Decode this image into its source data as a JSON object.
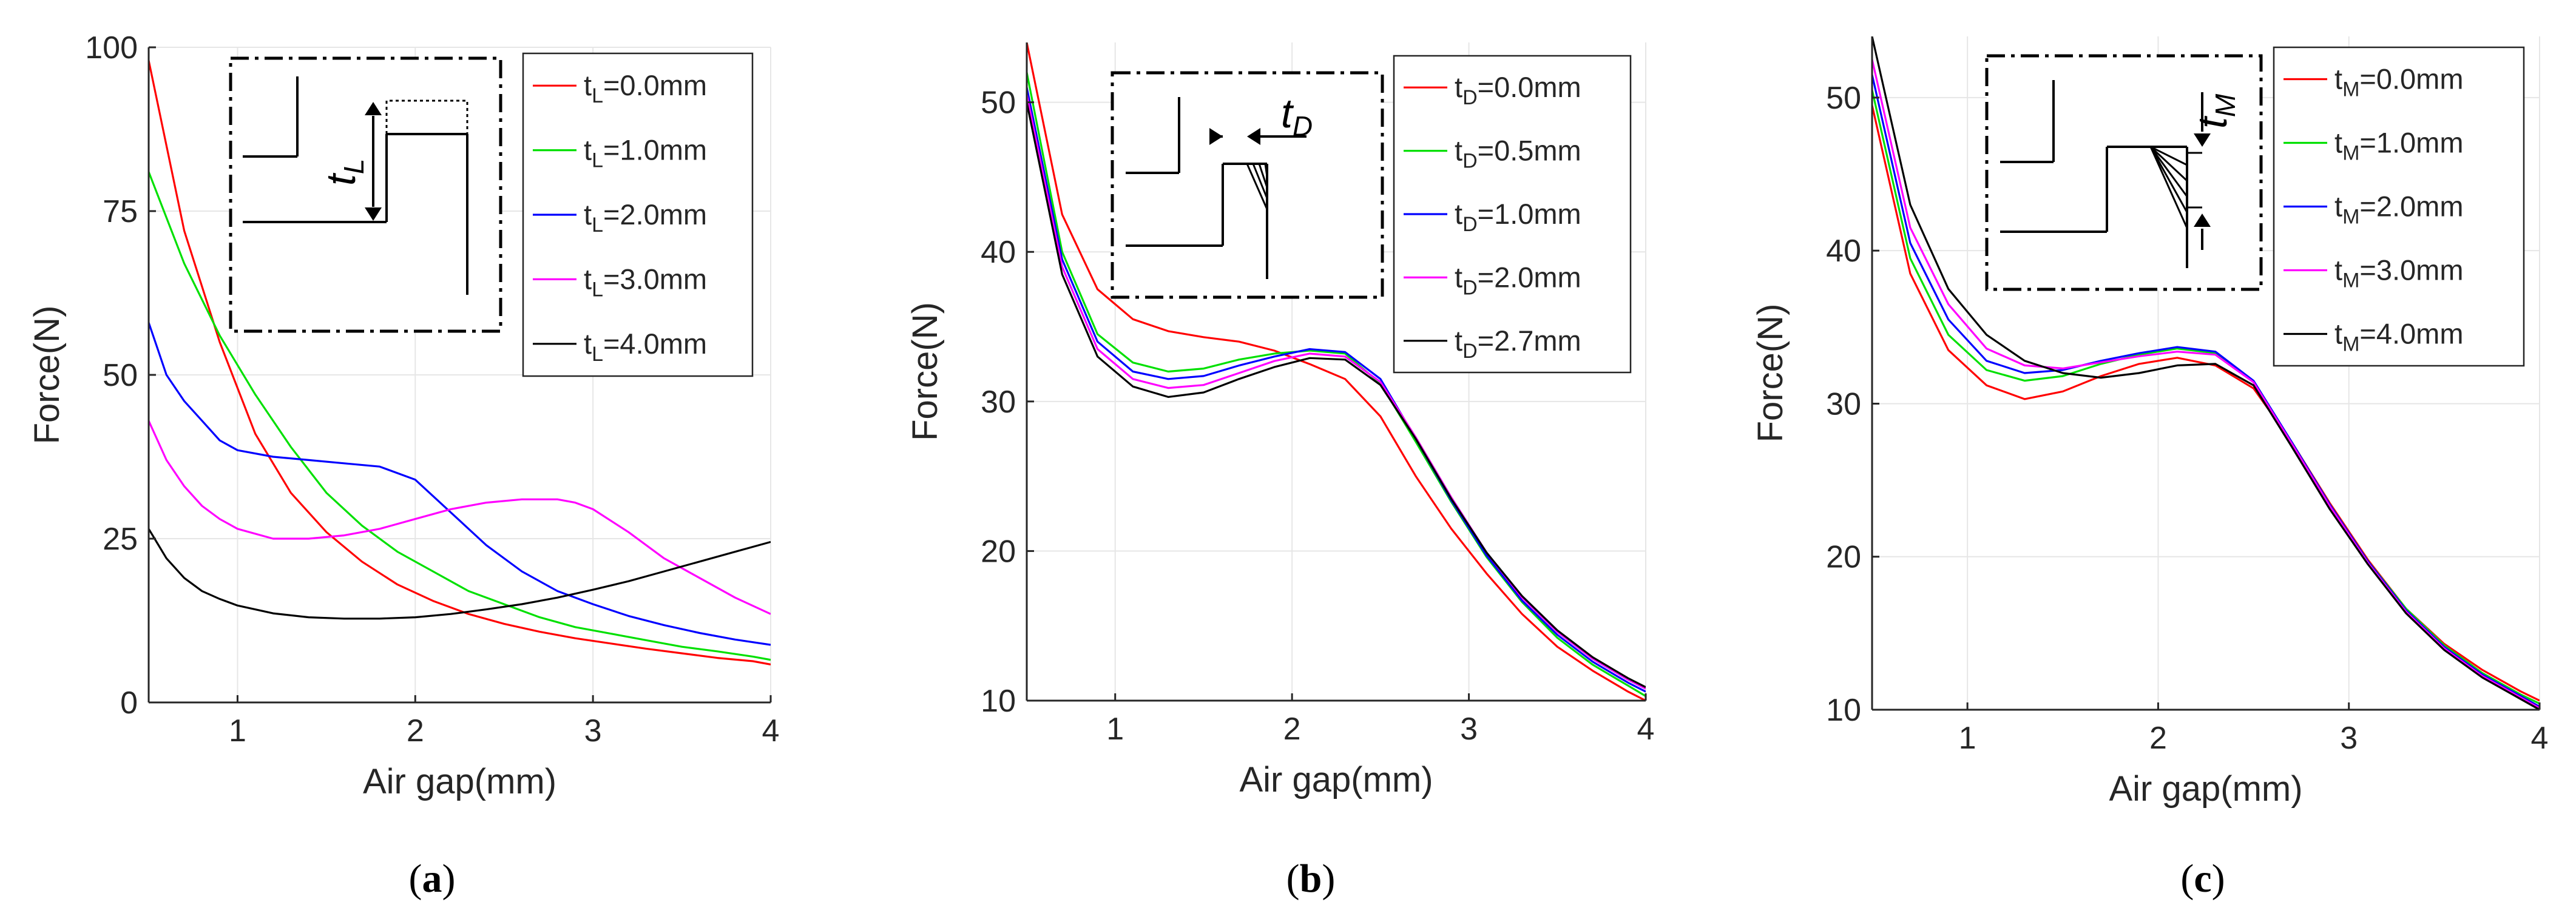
{
  "chart_data": [
    {
      "type": "line",
      "caption": {
        "open": "(",
        "letter": "a",
        "close": ")"
      },
      "xlabel": "Air gap(mm)",
      "ylabel": "Force(N)",
      "xlim": [
        0.5,
        4
      ],
      "ylim": [
        0,
        100
      ],
      "xticks": [
        1,
        2,
        3,
        4
      ],
      "yticks": [
        0,
        25,
        50,
        75,
        100
      ],
      "grid": true,
      "legend_position": "top-right",
      "inset": {
        "kind": "step-height",
        "symbol": "t",
        "subscript": "L"
      },
      "series": [
        {
          "name": "t_L=0.0mm",
          "sym": "t",
          "sub": "L",
          "val": "=0.0mm",
          "color": "#ff0000",
          "x": [
            0.5,
            0.7,
            0.9,
            1.1,
            1.3,
            1.5,
            1.7,
            1.9,
            2.1,
            2.3,
            2.5,
            2.7,
            2.9,
            3.1,
            3.3,
            3.5,
            3.7,
            3.9,
            4.0
          ],
          "y": [
            98,
            72,
            55,
            41,
            32,
            26,
            21.5,
            18,
            15.5,
            13.5,
            12,
            10.8,
            9.8,
            9,
            8.2,
            7.5,
            6.8,
            6.3,
            5.8
          ]
        },
        {
          "name": "t_L=1.0mm",
          "sym": "t",
          "sub": "L",
          "val": "=1.0mm",
          "color": "#00e000",
          "x": [
            0.5,
            0.7,
            0.9,
            1.1,
            1.3,
            1.5,
            1.7,
            1.9,
            2.1,
            2.3,
            2.5,
            2.7,
            2.9,
            3.1,
            3.3,
            3.5,
            3.7,
            3.9,
            4.0
          ],
          "y": [
            81,
            67,
            56,
            47,
            39,
            32,
            27,
            23,
            20,
            17,
            15,
            13,
            11.5,
            10.5,
            9.5,
            8.5,
            7.8,
            7,
            6.5
          ]
        },
        {
          "name": "t_L=2.0mm",
          "sym": "t",
          "sub": "L",
          "val": "=2.0mm",
          "color": "#0000ff",
          "x": [
            0.5,
            0.6,
            0.7,
            0.8,
            0.9,
            1.0,
            1.2,
            1.4,
            1.6,
            1.8,
            2.0,
            2.2,
            2.4,
            2.6,
            2.8,
            3.0,
            3.2,
            3.4,
            3.6,
            3.8,
            4.0
          ],
          "y": [
            58,
            50,
            46,
            43,
            40,
            38.5,
            37.5,
            37,
            36.5,
            36,
            34,
            29,
            24,
            20,
            17,
            15,
            13.2,
            11.8,
            10.6,
            9.6,
            8.8
          ]
        },
        {
          "name": "t_L=3.0mm",
          "sym": "t",
          "sub": "L",
          "val": "=3.0mm",
          "color": "#ff00ff",
          "x": [
            0.5,
            0.6,
            0.7,
            0.8,
            0.9,
            1.0,
            1.2,
            1.4,
            1.6,
            1.8,
            2.0,
            2.2,
            2.4,
            2.6,
            2.7,
            2.8,
            2.9,
            3.0,
            3.2,
            3.4,
            3.6,
            3.8,
            4.0
          ],
          "y": [
            43,
            37,
            33,
            30,
            28,
            26.5,
            25,
            25,
            25.5,
            26.5,
            28,
            29.5,
            30.5,
            31,
            31,
            31,
            30.5,
            29.5,
            26,
            22,
            19,
            16,
            13.5
          ]
        },
        {
          "name": "t_L=4.0mm",
          "sym": "t",
          "sub": "L",
          "val": "=4.0mm",
          "color": "#000000",
          "x": [
            0.5,
            0.6,
            0.7,
            0.8,
            0.9,
            1.0,
            1.2,
            1.4,
            1.6,
            1.8,
            2.0,
            2.2,
            2.4,
            2.6,
            2.8,
            3.0,
            3.2,
            3.4,
            3.6,
            3.8,
            4.0
          ],
          "y": [
            26.5,
            22,
            19,
            17,
            15.8,
            14.8,
            13.6,
            13,
            12.8,
            12.8,
            13,
            13.5,
            14.2,
            15,
            16,
            17.2,
            18.5,
            20,
            21.5,
            23,
            24.5
          ]
        }
      ]
    },
    {
      "type": "line",
      "caption": {
        "open": "(",
        "letter": "b",
        "close": ")"
      },
      "xlabel": "Air gap(mm)",
      "ylabel": "Force(N)",
      "xlim": [
        0.5,
        4
      ],
      "ylim": [
        10,
        54
      ],
      "xticks": [
        1,
        2,
        3,
        4
      ],
      "yticks": [
        10,
        20,
        30,
        40,
        50
      ],
      "grid": true,
      "legend_position": "top-right",
      "inset": {
        "kind": "step-chamfer-width",
        "symbol": "t",
        "subscript": "D"
      },
      "series": [
        {
          "name": "t_D=0.0mm",
          "sym": "t",
          "sub": "D",
          "val": "=0.0mm",
          "color": "#ff0000",
          "x": [
            0.5,
            0.7,
            0.9,
            1.1,
            1.3,
            1.5,
            1.7,
            1.9,
            2.1,
            2.3,
            2.5,
            2.7,
            2.9,
            3.1,
            3.3,
            3.5,
            3.7,
            3.9,
            4.0
          ],
          "y": [
            54,
            42.5,
            37.5,
            35.5,
            34.7,
            34.3,
            34,
            33.4,
            32.5,
            31.5,
            29,
            25,
            21.5,
            18.5,
            15.8,
            13.6,
            12,
            10.6,
            10
          ]
        },
        {
          "name": "t_D=0.5mm",
          "sym": "t",
          "sub": "D",
          "val": "=0.5mm",
          "color": "#00e000",
          "x": [
            0.5,
            0.7,
            0.9,
            1.1,
            1.3,
            1.5,
            1.7,
            1.9,
            2.1,
            2.3,
            2.5,
            2.7,
            2.9,
            3.1,
            3.3,
            3.5,
            3.7,
            3.9,
            4.0
          ],
          "y": [
            52,
            40,
            34.5,
            32.6,
            32,
            32.2,
            32.8,
            33.2,
            33.4,
            33.2,
            31.2,
            27.3,
            23.3,
            19.6,
            16.6,
            14.2,
            12.4,
            11,
            10.3
          ]
        },
        {
          "name": "t_D=1.0mm",
          "sym": "t",
          "sub": "D",
          "val": "=1.0mm",
          "color": "#0000ff",
          "x": [
            0.5,
            0.7,
            0.9,
            1.1,
            1.3,
            1.5,
            1.7,
            1.9,
            2.1,
            2.3,
            2.5,
            2.7,
            2.9,
            3.1,
            3.3,
            3.5,
            3.7,
            3.9,
            4.0
          ],
          "y": [
            51,
            39.5,
            34,
            32,
            31.5,
            31.7,
            32.4,
            33,
            33.5,
            33.3,
            31.5,
            27.5,
            23.4,
            19.7,
            16.7,
            14.4,
            12.6,
            11.2,
            10.6
          ]
        },
        {
          "name": "t_D=2.0mm",
          "sym": "t",
          "sub": "D",
          "val": "=2.0mm",
          "color": "#ff00ff",
          "x": [
            0.5,
            0.7,
            0.9,
            1.1,
            1.3,
            1.5,
            1.7,
            1.9,
            2.1,
            2.3,
            2.5,
            2.7,
            2.9,
            3.1,
            3.3,
            3.5,
            3.7,
            3.9,
            4.0
          ],
          "y": [
            50.5,
            39,
            33.5,
            31.5,
            30.9,
            31.1,
            31.9,
            32.7,
            33.2,
            33,
            31.3,
            27.6,
            23.6,
            19.9,
            16.9,
            14.6,
            12.8,
            11.4,
            10.8
          ]
        },
        {
          "name": "t_D=2.7mm",
          "sym": "t",
          "sub": "D",
          "val": "=2.7mm",
          "color": "#000000",
          "x": [
            0.5,
            0.7,
            0.9,
            1.1,
            1.3,
            1.5,
            1.7,
            1.9,
            2.1,
            2.3,
            2.5,
            2.7,
            2.9,
            3.1,
            3.3,
            3.5,
            3.7,
            3.9,
            4.0
          ],
          "y": [
            50,
            38.5,
            33,
            31,
            30.3,
            30.6,
            31.5,
            32.3,
            32.9,
            32.8,
            31.1,
            27.5,
            23.5,
            19.9,
            17,
            14.7,
            12.9,
            11.5,
            10.9
          ]
        }
      ]
    },
    {
      "type": "line",
      "caption": {
        "open": "(",
        "letter": "c",
        "close": ")"
      },
      "xlabel": "Air gap(mm)",
      "ylabel": "Force(N)",
      "xlim": [
        0.5,
        4
      ],
      "ylim": [
        10,
        54
      ],
      "xticks": [
        1,
        2,
        3,
        4
      ],
      "yticks": [
        10,
        20,
        30,
        40,
        50
      ],
      "grid": true,
      "legend_position": "top-right",
      "inset": {
        "kind": "step-chamfer-height",
        "symbol": "t",
        "subscript": "M"
      },
      "series": [
        {
          "name": "t_M=0.0mm",
          "sym": "t",
          "sub": "M",
          "val": "=0.0mm",
          "color": "#ff0000",
          "x": [
            0.5,
            0.7,
            0.9,
            1.1,
            1.3,
            1.5,
            1.7,
            1.9,
            2.1,
            2.3,
            2.5,
            2.7,
            2.9,
            3.1,
            3.3,
            3.5,
            3.7,
            3.9,
            4.0
          ],
          "y": [
            49.5,
            38.5,
            33.5,
            31.2,
            30.3,
            30.8,
            31.8,
            32.6,
            33,
            32.5,
            31,
            27.5,
            23.5,
            19.8,
            16.6,
            14.3,
            12.6,
            11.2,
            10.6
          ]
        },
        {
          "name": "t_M=1.0mm",
          "sym": "t",
          "sub": "M",
          "val": "=1.0mm",
          "color": "#00e000",
          "x": [
            0.5,
            0.7,
            0.9,
            1.1,
            1.3,
            1.5,
            1.7,
            1.9,
            2.1,
            2.3,
            2.5,
            2.7,
            2.9,
            3.1,
            3.3,
            3.5,
            3.7,
            3.9,
            4.0
          ],
          "y": [
            50.5,
            39.5,
            34.5,
            32.2,
            31.5,
            31.8,
            32.6,
            33.2,
            33.6,
            33.3,
            31.4,
            27.5,
            23.4,
            19.7,
            16.6,
            14.2,
            12.4,
            11,
            10.4
          ]
        },
        {
          "name": "t_M=2.0mm",
          "sym": "t",
          "sub": "M",
          "val": "=2.0mm",
          "color": "#0000ff",
          "x": [
            0.5,
            0.7,
            0.9,
            1.1,
            1.3,
            1.5,
            1.7,
            1.9,
            2.1,
            2.3,
            2.5,
            2.7,
            2.9,
            3.1,
            3.3,
            3.5,
            3.7,
            3.9,
            4.0
          ],
          "y": [
            51.5,
            40.5,
            35.5,
            32.8,
            32,
            32.2,
            32.8,
            33.3,
            33.7,
            33.4,
            31.5,
            27.5,
            23.4,
            19.7,
            16.5,
            14.1,
            12.3,
            10.9,
            10.2
          ]
        },
        {
          "name": "t_M=3.0mm",
          "sym": "t",
          "sub": "M",
          "val": "=3.0mm",
          "color": "#ff00ff",
          "x": [
            0.5,
            0.7,
            0.9,
            1.1,
            1.3,
            1.5,
            1.7,
            1.9,
            2.1,
            2.3,
            2.5,
            2.7,
            2.9,
            3.1,
            3.3,
            3.5,
            3.7,
            3.9,
            4.0
          ],
          "y": [
            52.5,
            41.5,
            36.5,
            33.6,
            32.5,
            32.3,
            32.7,
            33.1,
            33.4,
            33.2,
            31.4,
            27.4,
            23.3,
            19.6,
            16.4,
            14,
            12.2,
            10.8,
            10.1
          ]
        },
        {
          "name": "t_M=4.0mm",
          "sym": "t",
          "sub": "M",
          "val": "=4.0mm",
          "color": "#000000",
          "x": [
            0.5,
            0.7,
            0.9,
            1.1,
            1.3,
            1.5,
            1.7,
            1.9,
            2.1,
            2.3,
            2.5,
            2.7,
            2.9,
            3.1,
            3.3,
            3.5,
            3.7,
            3.9,
            4.0
          ],
          "y": [
            54,
            43,
            37.5,
            34.5,
            32.8,
            32,
            31.7,
            32,
            32.5,
            32.6,
            31.2,
            27.2,
            23.1,
            19.5,
            16.3,
            13.9,
            12.1,
            10.7,
            10
          ]
        }
      ]
    }
  ]
}
